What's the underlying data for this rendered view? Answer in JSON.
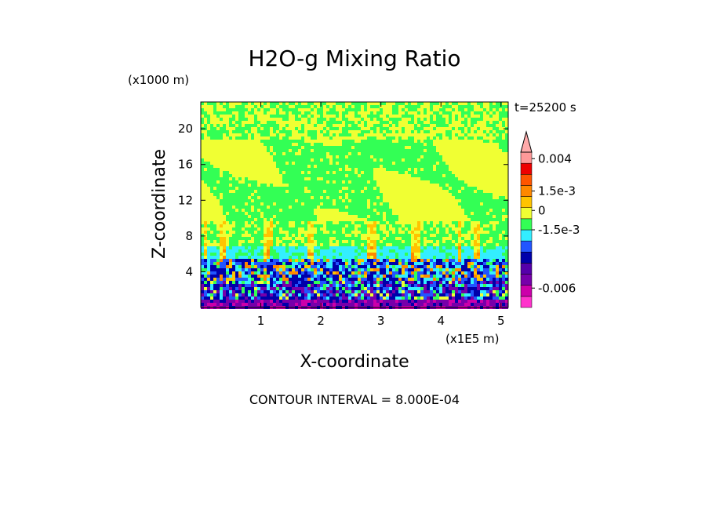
{
  "chart_data": {
    "type": "heatmap",
    "title": "H2O-g Mixing Ratio",
    "xlabel": "X-coordinate",
    "ylabel": "Z-coordinate",
    "x_units": "(x1E5 m)",
    "y_units": "(x1000 m)",
    "time_label": "t=25200 s",
    "footer": "CONTOUR INTERVAL = 8.000E-04",
    "x_ticks": [
      "1",
      "2",
      "3",
      "4",
      "5"
    ],
    "x_tick_values": [
      1,
      2,
      3,
      4,
      5
    ],
    "y_ticks": [
      "4",
      "8",
      "12",
      "16",
      "20"
    ],
    "y_tick_values": [
      4,
      8,
      12,
      16,
      20
    ],
    "xlim": [
      0,
      5.12
    ],
    "ylim": [
      0,
      23
    ],
    "grid": false,
    "colorbar_labels": [
      {
        "text": "0.004",
        "value": 0.004
      },
      {
        "text": "1.5e-3",
        "value": 0.0015
      },
      {
        "text": "0",
        "value": 0
      },
      {
        "text": "-1.5e-3",
        "value": -0.0015
      },
      {
        "text": "-0.006",
        "value": -0.006
      }
    ],
    "colorbar_colors": [
      "#ff33cc",
      "#cc00aa",
      "#7700aa",
      "#5500aa",
      "#0000aa",
      "#2255ff",
      "#33eeff",
      "#33ff55",
      "#f0ff33",
      "#ffc400",
      "#ff8800",
      "#ff5500",
      "#ee0000",
      "#ff9999"
    ]
  }
}
